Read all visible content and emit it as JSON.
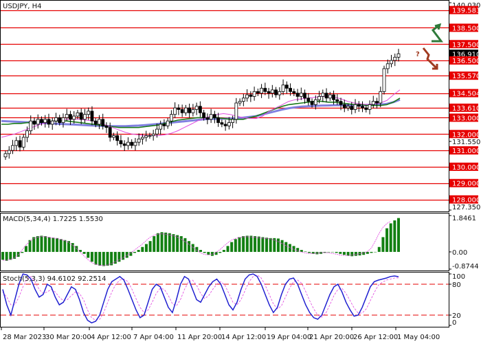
{
  "colors": {
    "level_red": "#e60000",
    "bull_candle": "#ffffff",
    "bear_candle": "#000000",
    "ma_fast": "#e04de0",
    "ma_mid": "#1a7a1a",
    "ma_slow": "#8080e0",
    "macd_bar": "#128012",
    "macd_signal": "#e040e0",
    "stoch_main": "#1f1fd0",
    "stoch_signal": "#e040e0",
    "arrow_up": "#2f7a3a",
    "arrow_down": "#a03a20",
    "question": "#a03a20",
    "last_price_bg": "#000000"
  },
  "annotations": {
    "question_mark": "?",
    "arrow_up_icon": "zigzag-up-arrow-icon",
    "arrow_down_icon": "zigzag-down-arrow-icon"
  },
  "chart_data": [
    {
      "type": "candlestick",
      "title": "USDJPY, H4",
      "y_ticks": [
        "140.030",
        "139.583",
        "138.500",
        "137.500",
        "136.910",
        "136.500",
        "135.570",
        "134.504",
        "133.610",
        "133.000",
        "132.000",
        "131.550",
        "131.000",
        "130.000",
        "129.000",
        "128.000",
        "127.350"
      ],
      "ylim": [
        127.35,
        140.03
      ],
      "levels": [
        139.583,
        138.5,
        137.5,
        136.5,
        135.57,
        134.504,
        133.61,
        133.0,
        132.0,
        131.0,
        130.0,
        129.0,
        128.0
      ],
      "last_price": 136.91,
      "last_price_label": "136.910",
      "x_tick_labels": [
        "28 Mar 2023",
        "30 Mar 20:00",
        "4 Apr 12:00",
        "7 Apr 04:00",
        "11 Apr 20:00",
        "14 Apr 12:00",
        "19 Apr 04:00",
        "21 Apr 20:00",
        "26 Apr 12:00",
        "1 May 04:00"
      ],
      "closes": [
        130.8,
        131.0,
        131.3,
        131.6,
        131.2,
        131.8,
        132.2,
        132.8,
        132.6,
        132.9,
        132.7,
        132.9,
        132.6,
        132.8,
        133.0,
        132.7,
        133.0,
        133.2,
        132.9,
        133.1,
        133.3,
        132.9,
        133.2,
        133.4,
        132.8,
        132.6,
        132.9,
        132.5,
        132.4,
        131.8,
        131.9,
        131.6,
        131.4,
        131.3,
        131.5,
        131.3,
        131.5,
        131.7,
        131.8,
        131.9,
        131.9,
        132.0,
        132.3,
        132.6,
        132.5,
        132.8,
        133.2,
        133.6,
        133.5,
        133.3,
        133.6,
        133.3,
        133.5,
        133.7,
        133.3,
        133.0,
        132.9,
        133.2,
        133.0,
        132.7,
        132.6,
        132.5,
        132.7,
        132.9,
        133.9,
        134.0,
        134.2,
        134.4,
        134.3,
        134.6,
        134.5,
        134.8,
        134.6,
        134.5,
        134.7,
        134.4,
        134.6,
        135.0,
        134.8,
        134.6,
        134.5,
        134.3,
        134.5,
        134.2,
        134.0,
        133.8,
        134.1,
        134.3,
        134.5,
        134.2,
        134.4,
        134.1,
        134.0,
        133.8,
        133.6,
        133.7,
        133.5,
        133.8,
        133.7,
        133.6,
        133.5,
        133.8,
        134.0,
        133.9,
        134.6,
        136.0,
        136.3,
        136.5,
        136.7,
        136.91
      ],
      "ma_fast": [
        131.8,
        131.9,
        132.0,
        132.15,
        132.3,
        132.45,
        132.6,
        132.7,
        132.8,
        132.85,
        132.9,
        132.9,
        132.9,
        132.85,
        132.8,
        132.7,
        132.55,
        132.4,
        132.25,
        132.1,
        132.0,
        131.95,
        131.9,
        131.9,
        131.9,
        131.95,
        132.05,
        132.2,
        132.4,
        132.6,
        132.8,
        132.95,
        133.1,
        133.2,
        133.25,
        133.2,
        133.1,
        133.0,
        132.95,
        132.95,
        133.1,
        133.4,
        133.6,
        133.8,
        134.0,
        134.1,
        134.15,
        134.2,
        134.25,
        134.3,
        134.3,
        134.25,
        134.15,
        134.0,
        133.9,
        133.85,
        133.8,
        133.85,
        133.9,
        134.05,
        134.4,
        134.7
      ],
      "ma_mid": [
        132.6,
        132.6,
        132.65,
        132.65,
        132.7,
        132.7,
        132.75,
        132.75,
        132.8,
        132.8,
        132.8,
        132.75,
        132.7,
        132.65,
        132.6,
        132.55,
        132.5,
        132.45,
        132.4,
        132.4,
        132.4,
        132.4,
        132.45,
        132.5,
        132.55,
        132.65,
        132.75,
        132.85,
        132.9,
        132.95,
        133.0,
        133.0,
        133.0,
        133.0,
        132.95,
        132.9,
        132.9,
        132.9,
        133.0,
        133.1,
        133.25,
        133.4,
        133.55,
        133.7,
        133.8,
        133.85,
        133.9,
        133.95,
        134.0,
        134.0,
        133.95,
        133.95,
        133.9,
        133.85,
        133.8,
        133.8,
        133.75,
        133.75,
        133.75,
        133.8,
        133.95,
        134.2
      ],
      "ma_slow": [
        132.8,
        132.78,
        132.76,
        132.74,
        132.72,
        132.7,
        132.68,
        132.66,
        132.64,
        132.62,
        132.6,
        132.58,
        132.56,
        132.54,
        132.52,
        132.5,
        132.49,
        132.48,
        132.48,
        132.48,
        132.5,
        132.52,
        132.55,
        132.58,
        132.62,
        132.66,
        132.7,
        132.74,
        132.78,
        132.82,
        132.86,
        132.9,
        132.92,
        132.93,
        132.94,
        132.95,
        132.97,
        133.0,
        133.05,
        133.1,
        133.2,
        133.3,
        133.4,
        133.5,
        133.58,
        133.64,
        133.68,
        133.7,
        133.72,
        133.74,
        133.75,
        133.76,
        133.76,
        133.76,
        133.76,
        133.77,
        133.78,
        133.79,
        133.8,
        133.85,
        133.95,
        134.1
      ]
    },
    {
      "type": "bar",
      "title": "MACD(5,34,4) 1.7225 1.5530",
      "y_ticks": [
        "1.8461",
        "0.00",
        "-0.8744"
      ],
      "ylim": [
        -0.8744,
        1.8461
      ],
      "values": [
        -0.4,
        -0.45,
        -0.4,
        -0.35,
        -0.25,
        -0.05,
        0.3,
        0.6,
        0.75,
        0.8,
        0.82,
        0.8,
        0.75,
        0.72,
        0.7,
        0.65,
        0.6,
        0.55,
        0.45,
        0.3,
        0.1,
        -0.1,
        -0.3,
        -0.5,
        -0.65,
        -0.7,
        -0.72,
        -0.7,
        -0.68,
        -0.6,
        -0.5,
        -0.4,
        -0.3,
        -0.2,
        -0.05,
        0.1,
        0.25,
        0.4,
        0.55,
        0.8,
        0.95,
        1.0,
        0.98,
        0.95,
        0.9,
        0.85,
        0.8,
        0.7,
        0.55,
        0.4,
        0.25,
        0.1,
        -0.05,
        -0.15,
        -0.2,
        -0.15,
        -0.05,
        0.1,
        0.3,
        0.5,
        0.65,
        0.75,
        0.8,
        0.82,
        0.82,
        0.8,
        0.78,
        0.75,
        0.72,
        0.7,
        0.7,
        0.68,
        0.6,
        0.5,
        0.4,
        0.3,
        0.2,
        0.1,
        0.02,
        -0.05,
        -0.1,
        -0.12,
        -0.1,
        -0.05,
        -0.02,
        0.0,
        -0.05,
        -0.1,
        -0.15,
        -0.2,
        -0.22,
        -0.2,
        -0.18,
        -0.15,
        -0.1,
        -0.05,
        0.0,
        0.25,
        0.75,
        1.2,
        1.45,
        1.6,
        1.72
      ],
      "signal": [
        -0.42,
        -0.42,
        -0.38,
        -0.3,
        -0.15,
        0.1,
        0.35,
        0.55,
        0.68,
        0.75,
        0.78,
        0.77,
        0.74,
        0.71,
        0.68,
        0.63,
        0.57,
        0.48,
        0.35,
        0.18,
        -0.02,
        -0.22,
        -0.4,
        -0.55,
        -0.63,
        -0.68,
        -0.69,
        -0.66,
        -0.6,
        -0.5,
        -0.4,
        -0.3,
        -0.18,
        -0.05,
        0.1,
        0.25,
        0.4,
        0.58,
        0.75,
        0.85,
        0.9,
        0.92,
        0.9,
        0.86,
        0.82,
        0.75,
        0.65,
        0.52,
        0.38,
        0.23,
        0.08,
        -0.05,
        -0.13,
        -0.15,
        -0.12,
        -0.02,
        0.12,
        0.3,
        0.47,
        0.6,
        0.68,
        0.73,
        0.76,
        0.77,
        0.76,
        0.74,
        0.72,
        0.7,
        0.68,
        0.66,
        0.6,
        0.52,
        0.42,
        0.32,
        0.22,
        0.12,
        0.05,
        -0.01,
        -0.05,
        -0.08,
        -0.08,
        -0.06,
        -0.04,
        -0.03,
        -0.05,
        -0.08,
        -0.12,
        -0.16,
        -0.18,
        -0.18,
        -0.16,
        -0.13,
        -0.09,
        -0.05,
        0.02,
        0.2,
        0.55,
        0.95,
        1.25,
        1.45,
        1.553
      ]
    },
    {
      "type": "line",
      "title": "Stoch(5,3,3) 94.6102 92.2514",
      "y_ticks": [
        "100",
        "80",
        "20",
        "0"
      ],
      "ylim": [
        0,
        100
      ],
      "levels": [
        80,
        20
      ],
      "main": [
        70,
        40,
        20,
        50,
        80,
        100,
        98,
        90,
        70,
        55,
        60,
        80,
        75,
        55,
        40,
        45,
        60,
        75,
        70,
        50,
        25,
        10,
        5,
        8,
        20,
        45,
        70,
        85,
        90,
        95,
        88,
        70,
        50,
        30,
        15,
        20,
        45,
        70,
        80,
        75,
        55,
        35,
        25,
        50,
        80,
        95,
        90,
        70,
        50,
        45,
        60,
        75,
        85,
        90,
        80,
        60,
        40,
        30,
        45,
        70,
        90,
        98,
        100,
        95,
        80,
        60,
        40,
        25,
        35,
        60,
        80,
        90,
        92,
        80,
        60,
        40,
        25,
        15,
        12,
        20,
        40,
        60,
        75,
        80,
        65,
        45,
        30,
        18,
        20,
        35,
        55,
        75,
        85,
        88,
        90,
        92,
        95,
        96,
        94.61
      ],
      "signal": [
        65,
        55,
        40,
        40,
        55,
        75,
        90,
        95,
        85,
        70,
        62,
        65,
        70,
        65,
        55,
        48,
        50,
        58,
        65,
        62,
        50,
        30,
        15,
        10,
        12,
        25,
        45,
        65,
        80,
        88,
        90,
        85,
        70,
        52,
        35,
        25,
        30,
        45,
        62,
        72,
        70,
        58,
        42,
        38,
        50,
        70,
        85,
        88,
        78,
        62,
        52,
        58,
        70,
        80,
        85,
        78,
        62,
        45,
        40,
        50,
        68,
        85,
        95,
        98,
        92,
        78,
        60,
        42,
        32,
        38,
        55,
        72,
        85,
        88,
        82,
        66,
        48,
        32,
        20,
        16,
        24,
        40,
        58,
        70,
        72,
        62,
        48,
        34,
        24,
        24,
        32,
        48,
        64,
        78,
        84,
        88,
        90,
        92,
        92.25
      ]
    }
  ]
}
